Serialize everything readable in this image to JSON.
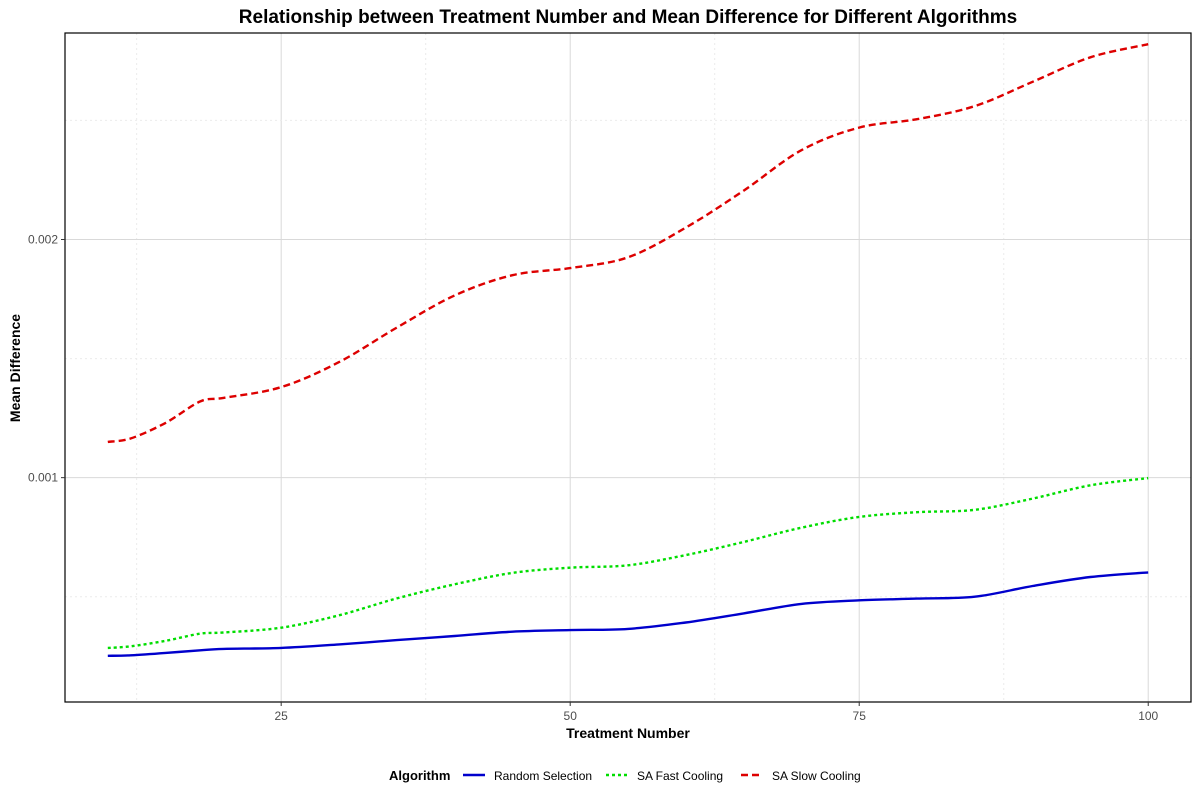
{
  "chart_data": {
    "type": "line",
    "title": "Relationship between Treatment Number and Mean Difference for Different Algorithms",
    "xlabel": "Treatment Number",
    "ylabel": "Mean Difference",
    "xlim": [
      6.3,
      103.7
    ],
    "ylim": [
      5.8e-05,
      0.002867
    ],
    "x_ticks": [
      25,
      50,
      75,
      100
    ],
    "x_tick_labels": [
      "25",
      "50",
      "75",
      "100"
    ],
    "y_ticks": [
      0.001,
      0.002
    ],
    "y_tick_labels": [
      "0.001",
      "0.002"
    ],
    "grid": true,
    "legend": {
      "title": "Algorithm",
      "position": "bottom"
    },
    "series": [
      {
        "name": "Random Selection",
        "color": "#0000cc",
        "dash": "solid",
        "x": [
          10,
          12,
          15,
          18,
          20,
          25,
          30,
          35,
          40,
          45,
          50,
          55,
          60,
          65,
          70,
          75,
          80,
          85,
          90,
          95,
          100
        ],
        "y": [
          0.000252,
          0.000254,
          0.000264,
          0.000275,
          0.000281,
          0.000285,
          0.0003,
          0.000318,
          0.000335,
          0.000353,
          0.00036,
          0.000365,
          0.000392,
          0.00043,
          0.00047,
          0.000485,
          0.000492,
          0.0005,
          0.000545,
          0.000583,
          0.000602
        ]
      },
      {
        "name": "SA Fast Cooling",
        "color": "#00dd00",
        "dash": "dotted",
        "x": [
          10,
          12,
          15,
          18,
          20,
          25,
          30,
          35,
          40,
          45,
          50,
          55,
          60,
          65,
          70,
          75,
          80,
          85,
          90,
          95,
          100
        ],
        "y": [
          0.000285,
          0.000292,
          0.000315,
          0.000345,
          0.00035,
          0.00037,
          0.000422,
          0.000493,
          0.000552,
          0.0006,
          0.000622,
          0.000632,
          0.000675,
          0.00073,
          0.00079,
          0.000835,
          0.000855,
          0.000865,
          0.000912,
          0.000968,
          0.000998
        ]
      },
      {
        "name": "SA Slow Cooling",
        "color": "#dd0000",
        "dash": "dashed",
        "x": [
          10,
          12,
          15,
          18,
          20,
          25,
          30,
          35,
          40,
          45,
          50,
          55,
          60,
          65,
          70,
          75,
          80,
          85,
          90,
          95,
          100
        ],
        "y": [
          0.00115,
          0.001165,
          0.00123,
          0.00132,
          0.001335,
          0.00138,
          0.001485,
          0.00163,
          0.001765,
          0.00185,
          0.00188,
          0.001925,
          0.00205,
          0.002205,
          0.002375,
          0.00247,
          0.002505,
          0.00256,
          0.002662,
          0.002765,
          0.00282
        ]
      }
    ]
  }
}
